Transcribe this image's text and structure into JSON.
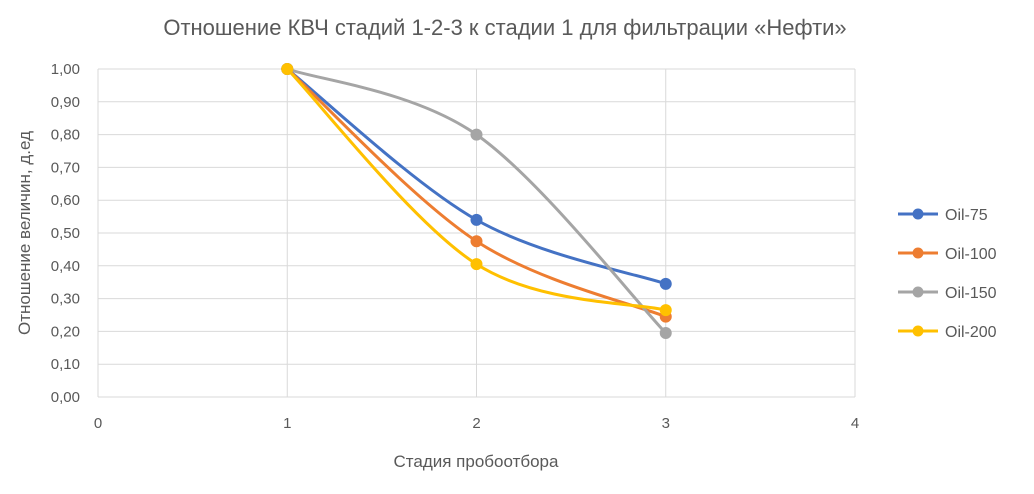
{
  "chart_data": {
    "type": "scatter",
    "title": "Отношение КВЧ стадий 1-2-3 к стадии 1 для фильтрации «Нефти»",
    "xlabel": "Стадия пробоотбора",
    "ylabel": "Отношение величин, д.ед",
    "xlim": [
      0,
      4
    ],
    "ylim": [
      0,
      1
    ],
    "xticks": [
      0,
      1,
      2,
      3,
      4
    ],
    "xtick_labels": [
      "0",
      "1",
      "2",
      "3",
      "4"
    ],
    "yticks": [
      0,
      0.1,
      0.2,
      0.3,
      0.4,
      0.5,
      0.6,
      0.7,
      0.8,
      0.9,
      1.0
    ],
    "ytick_labels": [
      "0,00",
      "0,10",
      "0,20",
      "0,30",
      "0,40",
      "0,50",
      "0,60",
      "0,70",
      "0,80",
      "0,90",
      "1,00"
    ],
    "grid": {
      "x": true,
      "y": true
    },
    "smooth_lines": true,
    "legend_position": "right",
    "series": [
      {
        "name": "Oil-75",
        "color": "#4472C4",
        "x": [
          1,
          2,
          3
        ],
        "y": [
          1.0,
          0.54,
          0.345
        ]
      },
      {
        "name": "Oil-100",
        "color": "#ED7D31",
        "x": [
          1,
          2,
          3
        ],
        "y": [
          1.0,
          0.475,
          0.245
        ]
      },
      {
        "name": "Oil-150",
        "color": "#A5A5A5",
        "x": [
          1,
          2,
          3
        ],
        "y": [
          1.0,
          0.8,
          0.195
        ]
      },
      {
        "name": "Oil-200",
        "color": "#FFC000",
        "x": [
          1,
          2,
          3
        ],
        "y": [
          1.0,
          0.405,
          0.265
        ]
      }
    ]
  }
}
